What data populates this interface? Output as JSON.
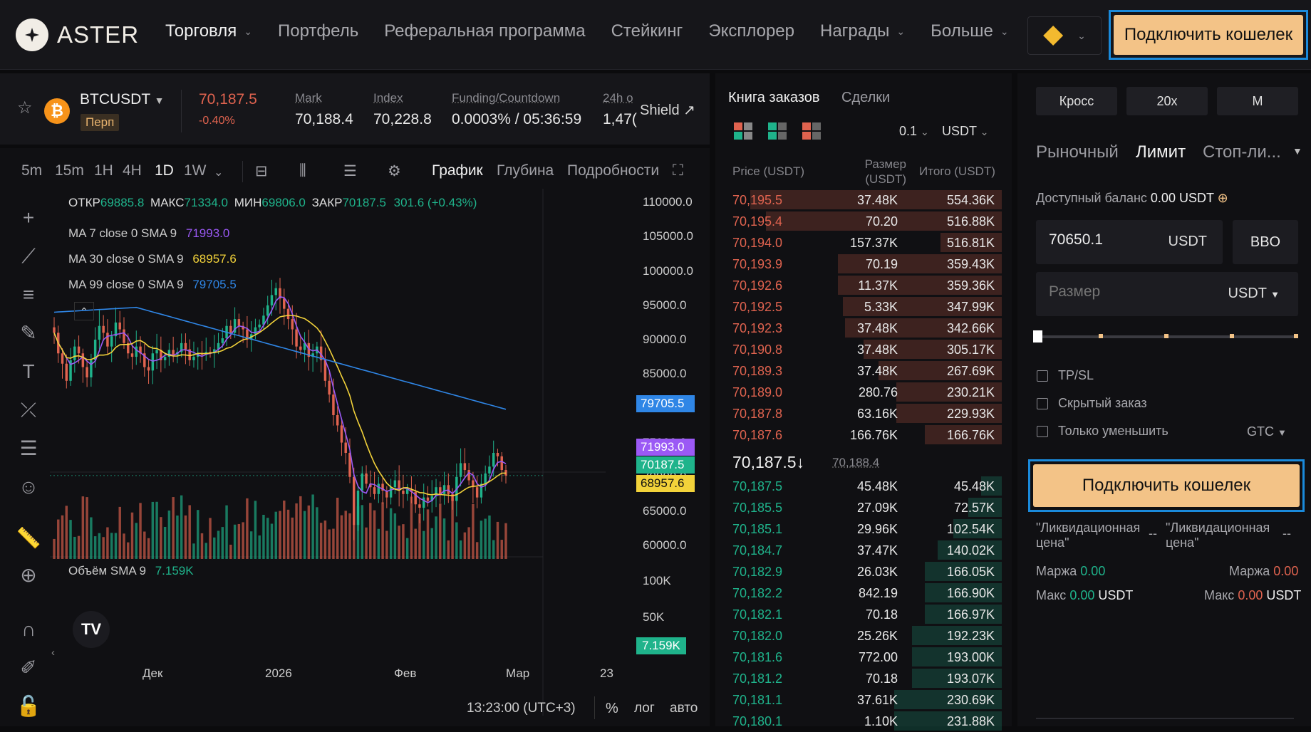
{
  "header": {
    "brand": "ASTER",
    "nav": [
      {
        "label": "Торговля",
        "dropdown": true,
        "active": true
      },
      {
        "label": "Портфель",
        "dropdown": false
      },
      {
        "label": "Реферальная программа",
        "dropdown": false
      },
      {
        "label": "Стейкинг",
        "dropdown": false
      },
      {
        "label": "Эксплорер",
        "dropdown": false
      },
      {
        "label": "Награды",
        "dropdown": true
      },
      {
        "label": "Больше",
        "dropdown": true
      }
    ],
    "chain_icon": "bnb-chain-icon",
    "connect_label": "Подключить кошелек"
  },
  "symbol": {
    "name": "BTCUSDT",
    "badge": "Перп",
    "last": "70,187.5",
    "change": "-0.40%",
    "stats": [
      {
        "label": "Mark",
        "value": "70,188.4"
      },
      {
        "label": "Index",
        "value": "70,228.8"
      },
      {
        "label": "Funding/Countdown",
        "value": "0.0003% / 05:36:59"
      },
      {
        "label": "24h o",
        "value": "1,47("
      }
    ],
    "shield": "Shield ↗"
  },
  "chart": {
    "timeframes": [
      "5m",
      "15m",
      "1H",
      "4H",
      "1D",
      "1W"
    ],
    "active_timeframe": "1D",
    "view_tabs": [
      "График",
      "Глубина",
      "Подробности"
    ],
    "active_view": "График",
    "ohlc": {
      "open_label": "ОТКР",
      "open": "69885.8",
      "high_label": "МАКС",
      "high": "71334.0",
      "low_label": "МИН",
      "low": "69806.0",
      "close_label": "ЗАКР",
      "close": "70187.5",
      "change": "301.6 (+0.43%)"
    },
    "ma": [
      {
        "label": "MA 7 close 0 SMA 9",
        "value": "71993.0",
        "color": "#9b59f5"
      },
      {
        "label": "MA 30 close 0 SMA 9",
        "value": "68957.6",
        "color": "#f2d23a"
      },
      {
        "label": "MA 99 close 0 SMA 9",
        "value": "79705.5",
        "color": "#2f86e6"
      }
    ],
    "price_axis": [
      "110000.0",
      "105000.0",
      "100000.0",
      "95000.0",
      "90000.0",
      "85000.0",
      "80000.0",
      "75000.0",
      "70000.0",
      "65000.0",
      "60000.0"
    ],
    "price_tags": [
      {
        "value": "79705.5",
        "color": "#2f86e6",
        "price": 79705.5
      },
      {
        "value": "71993.0",
        "color": "#9b59f5",
        "price": 71993.0
      },
      {
        "value": "70187.5",
        "color": "#1fb38b",
        "price": 70187.5
      },
      {
        "value": "68957.6",
        "color": "#f2d23a",
        "price": 68957.6
      }
    ],
    "volume_label": "Объём SMA 9",
    "volume_value": "7.159K",
    "volume_axis": [
      "100K",
      "50K"
    ],
    "time_axis": [
      "Дек",
      "2026",
      "Фев",
      "Мар",
      "23"
    ],
    "clock": "13:23:00 (UTC+3)",
    "bottom_opts": [
      "%",
      "лог",
      "авто"
    ]
  },
  "chart_data": {
    "type": "candlestick",
    "title": "BTCUSDT 1D",
    "ylim": [
      57000,
      112000
    ],
    "closes": [
      91000,
      88000,
      86500,
      84000,
      87000,
      89000,
      88000,
      86000,
      84500,
      87000,
      90000,
      92000,
      91000,
      89000,
      90500,
      92500,
      91500,
      89500,
      88000,
      87500,
      89000,
      88000,
      86000,
      85500,
      88000,
      88500,
      87000,
      87500,
      88500,
      87800,
      88200,
      89500,
      88600,
      87000,
      87500,
      88000,
      87800,
      88200,
      88000,
      88600,
      89500,
      90200,
      92000,
      91000,
      93000,
      92000,
      91500,
      90000,
      90800,
      91800,
      92200,
      93500,
      95000,
      96500,
      97500,
      96000,
      94500,
      93000,
      91500,
      89000,
      88500,
      89500,
      87500,
      88000,
      89000,
      87000,
      84000,
      82000,
      79000,
      77500,
      75000,
      73500,
      70000,
      63000,
      68000,
      70500,
      69000,
      68500,
      67500,
      69000,
      68000,
      67000,
      68500,
      69500,
      68000,
      67500,
      68200,
      67800,
      66000,
      65500,
      67000,
      66500,
      67200,
      68500,
      67500,
      68800,
      67500,
      66500,
      70000,
      72000,
      71000,
      69500,
      68500,
      67000,
      69000,
      70500,
      71500,
      73500,
      73000,
      71000,
      70187.5
    ]
  },
  "orderbook": {
    "tabs": [
      "Книга заказов",
      "Сделки"
    ],
    "active_tab": "Книга заказов",
    "precision": "0.1",
    "unit": "USDT",
    "headers": [
      "Price (USDT)",
      "Размер (USDT)",
      "Итого (USDT)"
    ],
    "asks": [
      {
        "price": "70,195.5",
        "size": "37.48K",
        "total": "554.36K",
        "depth": 0.98
      },
      {
        "price": "70,195.4",
        "size": "70.20",
        "total": "516.88K",
        "depth": 0.92
      },
      {
        "price": "70,194.0",
        "size": "157.37K",
        "total": "516.81K",
        "depth": 0.24
      },
      {
        "price": "70,193.9",
        "size": "70.19",
        "total": "359.43K",
        "depth": 0.64
      },
      {
        "price": "70,192.6",
        "size": "11.37K",
        "total": "359.36K",
        "depth": 0.64
      },
      {
        "price": "70,192.5",
        "size": "5.33K",
        "total": "347.99K",
        "depth": 0.62
      },
      {
        "price": "70,192.3",
        "size": "37.48K",
        "total": "342.66K",
        "depth": 0.61
      },
      {
        "price": "70,190.8",
        "size": "37.48K",
        "total": "305.17K",
        "depth": 0.54
      },
      {
        "price": "70,189.3",
        "size": "37.48K",
        "total": "267.69K",
        "depth": 0.48
      },
      {
        "price": "70,189.0",
        "size": "280.76",
        "total": "230.21K",
        "depth": 0.41
      },
      {
        "price": "70,187.8",
        "size": "63.16K",
        "total": "229.93K",
        "depth": 0.41
      },
      {
        "price": "70,187.6",
        "size": "166.76K",
        "total": "166.76K",
        "depth": 0.3
      }
    ],
    "mid_price": "70,187.5",
    "mid_arrow": "↓",
    "mark_price": "70,188.4",
    "bids": [
      {
        "price": "70,187.5",
        "size": "45.48K",
        "total": "45.48K",
        "depth": 0.08
      },
      {
        "price": "70,185.5",
        "size": "27.09K",
        "total": "72.57K",
        "depth": 0.13
      },
      {
        "price": "70,185.1",
        "size": "29.96K",
        "total": "102.54K",
        "depth": 0.19
      },
      {
        "price": "70,184.7",
        "size": "37.47K",
        "total": "140.02K",
        "depth": 0.25
      },
      {
        "price": "70,182.9",
        "size": "26.03K",
        "total": "166.05K",
        "depth": 0.3
      },
      {
        "price": "70,182.2",
        "size": "842.19",
        "total": "166.90K",
        "depth": 0.3
      },
      {
        "price": "70,182.1",
        "size": "70.18",
        "total": "166.97K",
        "depth": 0.3
      },
      {
        "price": "70,182.0",
        "size": "25.26K",
        "total": "192.23K",
        "depth": 0.35
      },
      {
        "price": "70,181.6",
        "size": "772.00",
        "total": "193.00K",
        "depth": 0.35
      },
      {
        "price": "70,181.2",
        "size": "70.18",
        "total": "193.07K",
        "depth": 0.35
      },
      {
        "price": "70,181.1",
        "size": "37.61K",
        "total": "230.69K",
        "depth": 0.42
      },
      {
        "price": "70,180.1",
        "size": "1.10K",
        "total": "231.88K",
        "depth": 0.42
      }
    ]
  },
  "order_form": {
    "margin_mode": "Кросс",
    "leverage": "20x",
    "mode_letter": "M",
    "order_tabs": [
      "Рыночный",
      "Лимит",
      "Стоп-ли..."
    ],
    "active_order_tab": "Лимит",
    "balance_label": "Доступный баланс",
    "balance_value": "0.00 USDT",
    "price_value": "70650.1",
    "price_unit": "USDT",
    "bbo": "BBO",
    "size_placeholder": "Размер",
    "size_unit": "USDT",
    "slider_value": 0,
    "options": [
      "TP/SL",
      "Скрытый заказ",
      "Только уменьшить"
    ],
    "tif": "GTC",
    "connect_label": "Подключить кошелек",
    "liq_label": "\"Ликвидационная цена\"",
    "liq_value": "--",
    "margin_label": "Маржа",
    "margin_buy": "0.00",
    "margin_sell": "0.00",
    "max_label": "Макс",
    "max_buy": "0.00",
    "max_sell": "0.00",
    "max_unit": "USDT"
  }
}
